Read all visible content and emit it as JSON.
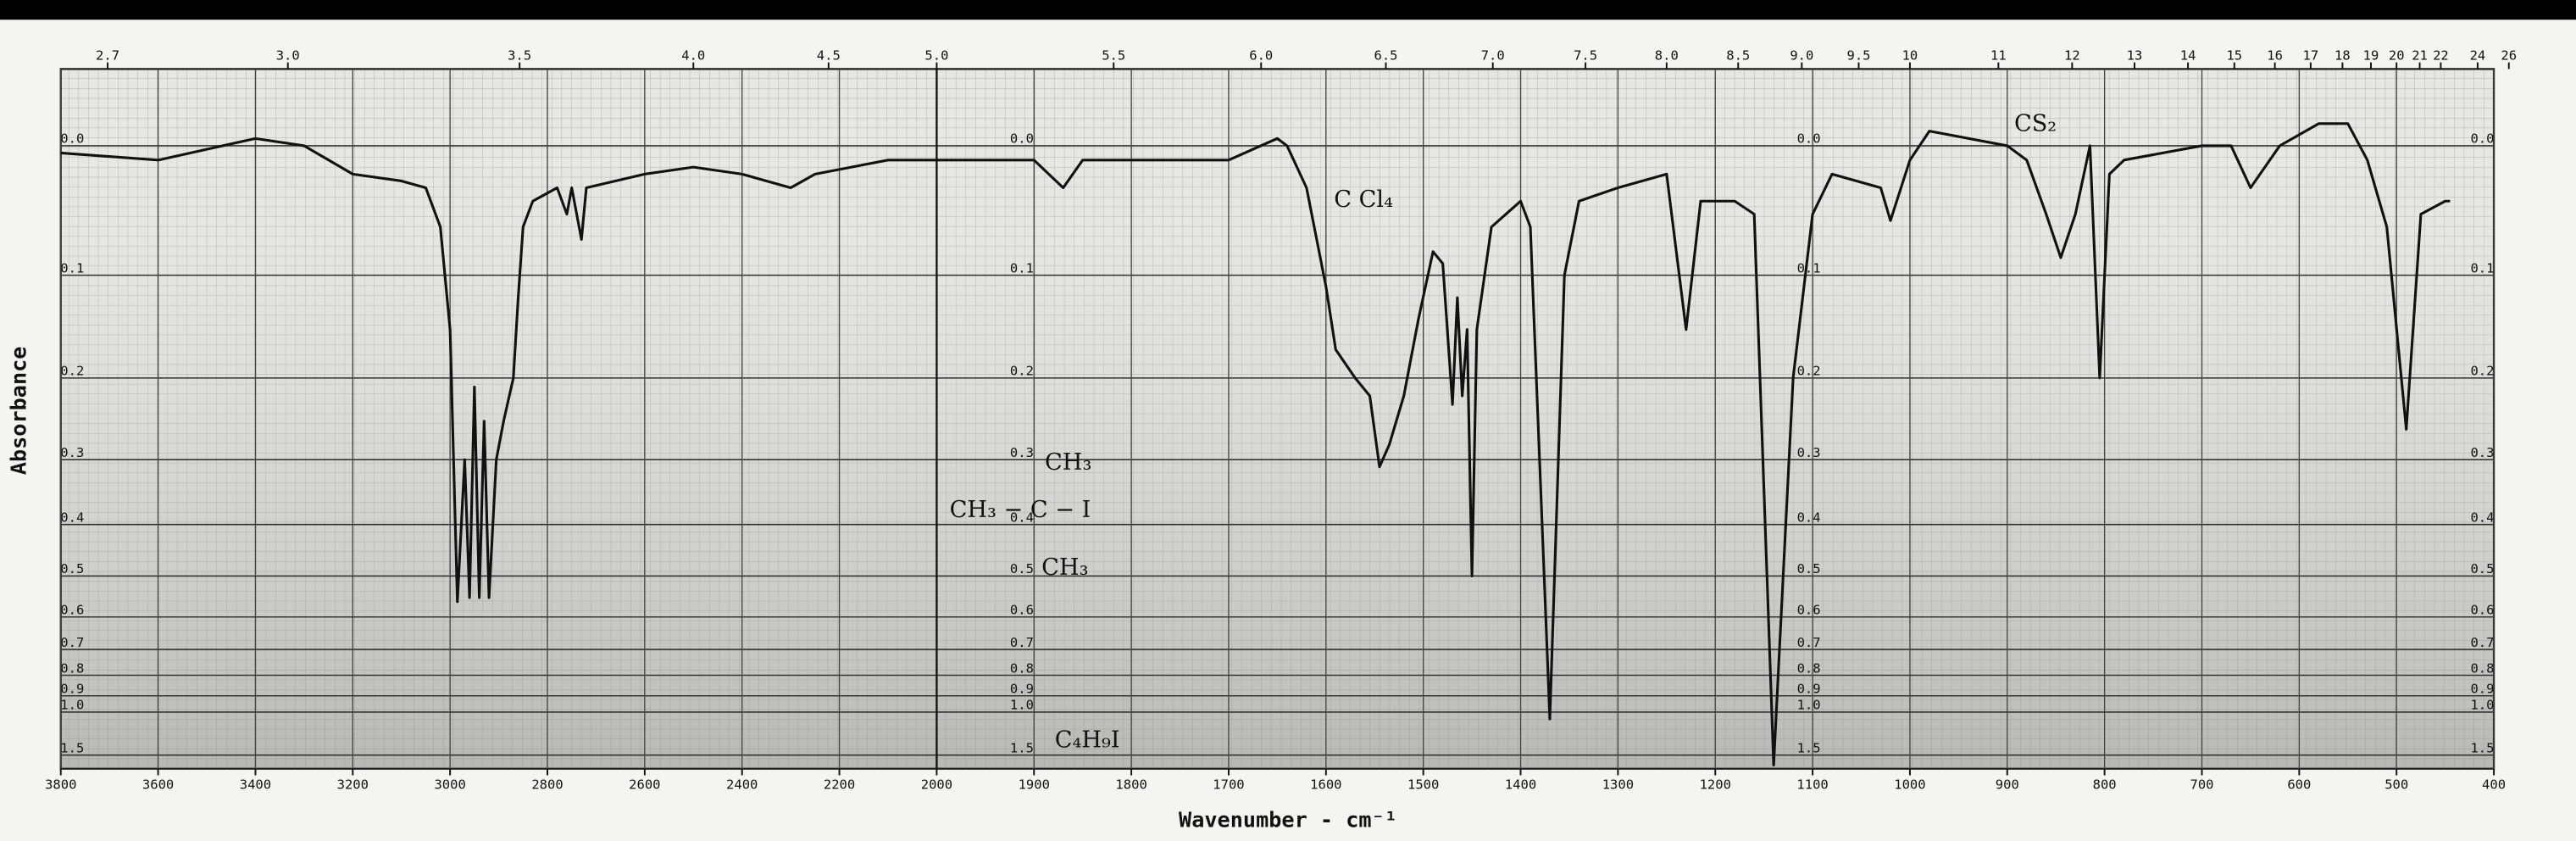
{
  "chart_data": {
    "type": "line",
    "y_label": "Absorbance",
    "x_label": "Wavenumber - cm⁻¹",
    "annotations": [
      "C Cl₄",
      "CS₂",
      "CH₃",
      "CH₃ − C − I",
      "CH₃",
      "C₄H₉I"
    ],
    "x": [
      3800,
      3600,
      3400,
      3300,
      3200,
      3100,
      3050,
      3020,
      3000,
      2985,
      2970,
      2960,
      2950,
      2940,
      2930,
      2920,
      2905,
      2890,
      2870,
      2860,
      2850,
      2830,
      2780,
      2760,
      2750,
      2730,
      2720,
      2600,
      2500,
      2400,
      2300,
      2250,
      2100,
      2000,
      1900,
      1870,
      1850,
      1700,
      1650,
      1640,
      1620,
      1600,
      1590,
      1570,
      1555,
      1545,
      1535,
      1520,
      1505,
      1490,
      1480,
      1470,
      1465,
      1460,
      1455,
      1450,
      1445,
      1430,
      1400,
      1390,
      1370,
      1355,
      1340,
      1300,
      1250,
      1230,
      1215,
      1180,
      1160,
      1140,
      1120,
      1100,
      1080,
      1030,
      1020,
      1000,
      980,
      900,
      880,
      860,
      845,
      830,
      815,
      805,
      795,
      780,
      700,
      670,
      650,
      620,
      580,
      550,
      530,
      510,
      490,
      475,
      450,
      445
    ],
    "values": [
      0.005,
      0.01,
      -0.005,
      0,
      0.02,
      0.025,
      0.03,
      0.06,
      0.15,
      0.56,
      0.3,
      0.55,
      0.21,
      0.55,
      0.25,
      0.55,
      0.3,
      0.25,
      0.2,
      0.12,
      0.06,
      0.04,
      0.03,
      0.05,
      0.03,
      0.07,
      0.03,
      0.02,
      0.015,
      0.02,
      0.03,
      0.02,
      0.01,
      0.01,
      0.01,
      0.03,
      0.01,
      0.01,
      -0.005,
      0,
      0.03,
      0.11,
      0.17,
      0.2,
      0.22,
      0.31,
      0.28,
      0.22,
      0.14,
      0.08,
      0.09,
      0.23,
      0.12,
      0.22,
      0.15,
      0.5,
      0.15,
      0.06,
      0.04,
      0.06,
      1.05,
      0.1,
      0.04,
      0.03,
      0.02,
      0.15,
      0.04,
      0.04,
      0.05,
      1.8,
      0.2,
      0.05,
      0.02,
      0.03,
      0.055,
      0.01,
      -0.01,
      0,
      0.01,
      0.05,
      0.085,
      0.05,
      0,
      0.2,
      0.02,
      0.01,
      0,
      0,
      0.03,
      0,
      -0.015,
      -0.015,
      0.01,
      0.06,
      0.26,
      0.05,
      0.04,
      0.04
    ],
    "color": "#111111",
    "xlim": [
      3800,
      400
    ],
    "xbreak": 2000,
    "xticks": [
      3800,
      3600,
      3400,
      3200,
      3000,
      2800,
      2600,
      2400,
      2200,
      2000,
      1900,
      1800,
      1700,
      1600,
      1500,
      1400,
      1300,
      1200,
      1100,
      1000,
      900,
      800,
      700,
      600,
      500,
      400
    ],
    "top_ticks": [
      2.7,
      {
        "value": 3,
        "label": "3.0"
      },
      3.5,
      {
        "value": 4,
        "label": "4.0"
      },
      4.5,
      {
        "value": 5,
        "label": "5.0"
      },
      5.5,
      {
        "value": 6,
        "label": "6.0"
      },
      6.5,
      {
        "value": 7,
        "label": "7.0"
      },
      7.5,
      {
        "value": 8,
        "label": "8.0"
      },
      8.5,
      {
        "value": 9,
        "label": "9.0"
      },
      9.5,
      10,
      11,
      12,
      13,
      14,
      15,
      16,
      17,
      18,
      19,
      20,
      21,
      22,
      24,
      26
    ],
    "yscale": "absorbance",
    "ylim": [
      -0.05,
      2
    ],
    "yticks": [
      {
        "value": 0,
        "label": "0.0"
      },
      0.1,
      0.2,
      0.3,
      0.4,
      0.5,
      0.6,
      0.7,
      0.8,
      0.9,
      {
        "value": 1,
        "label": "1.0"
      },
      1.5
    ],
    "grid": true
  }
}
